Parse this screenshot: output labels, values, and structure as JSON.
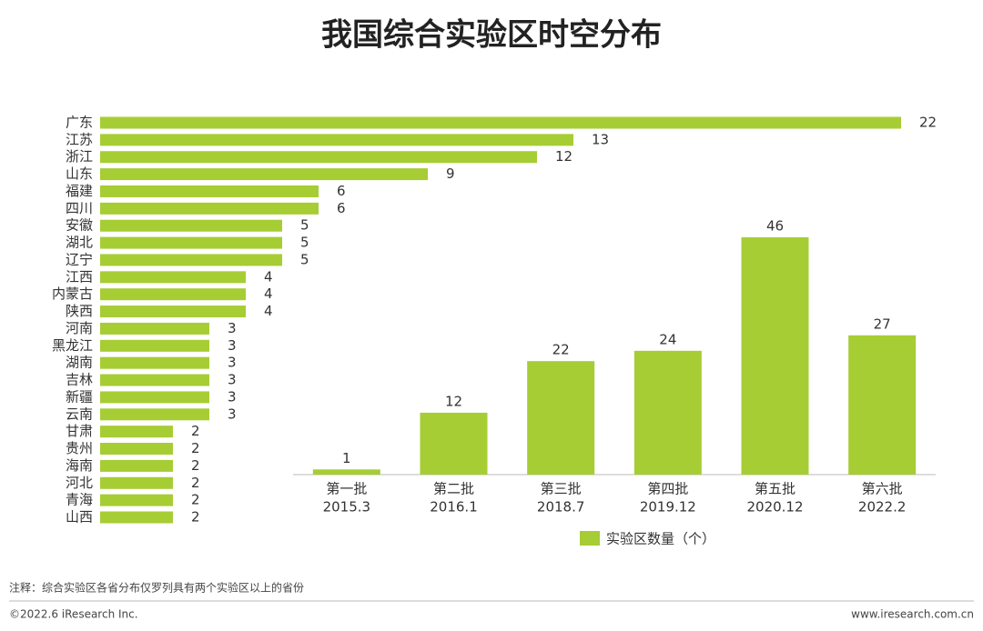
{
  "title": "我国综合实验区时空分布",
  "note": "注释：综合实验区各省分布仅罗列具有两个实验区以上的省份",
  "copyright": "©2022.6 iResearch Inc.",
  "website": "www.iresearch.com.cn",
  "chart_data": [
    {
      "type": "hbar",
      "color": "#a6cd34",
      "categories": [
        "广东",
        "江苏",
        "浙江",
        "山东",
        "福建",
        "四川",
        "安徽",
        "湖北",
        "辽宁",
        "江西",
        "内蒙古",
        "陕西",
        "河南",
        "黑龙江",
        "湖南",
        "吉林",
        "新疆",
        "云南",
        "甘肃",
        "贵州",
        "海南",
        "河北",
        "青海",
        "山西"
      ],
      "values": [
        22,
        13,
        12,
        9,
        6,
        6,
        5,
        5,
        5,
        4,
        4,
        4,
        3,
        3,
        3,
        3,
        3,
        3,
        2,
        2,
        2,
        2,
        2,
        2
      ]
    },
    {
      "type": "bar",
      "categories": [
        "第一批",
        "第二批",
        "第三批",
        "第四批",
        "第五批",
        "第六批"
      ],
      "sublabels": [
        "2015.3",
        "2016.1",
        "2018.7",
        "2019.12",
        "2020.12",
        "2022.2"
      ],
      "series": [
        {
          "name": "实验区数量（个）",
          "color": "#a6cd34",
          "values": [
            1,
            12,
            22,
            24,
            46,
            27
          ]
        }
      ]
    }
  ]
}
